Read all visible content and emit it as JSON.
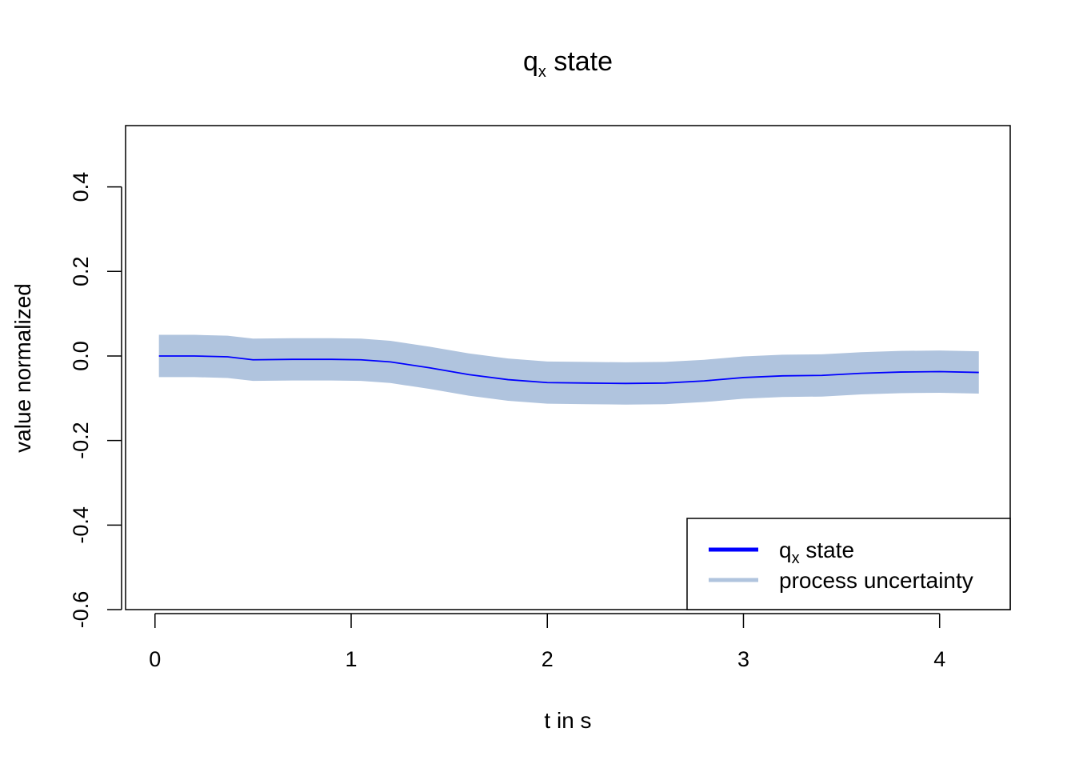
{
  "chart_data": {
    "type": "line",
    "title": {
      "main": "q",
      "subscript": "x",
      "rest": " state"
    },
    "xlabel": "t in s",
    "ylabel": "value normalized",
    "xlim": [
      -0.15,
      4.36
    ],
    "ylim": [
      -0.6,
      0.545
    ],
    "x_ticks": [
      0,
      1,
      2,
      3,
      4
    ],
    "x_tick_labels": [
      "0",
      "1",
      "2",
      "3",
      "4"
    ],
    "y_ticks": [
      -0.6,
      -0.4,
      -0.2,
      0.0,
      0.2,
      0.4
    ],
    "y_tick_labels": [
      "-0.6",
      "-0.4",
      "-0.2",
      "0.0",
      "0.2",
      "0.4"
    ],
    "grid": false,
    "legend_position": "bottom-right",
    "series": [
      {
        "name": "q_x state",
        "legend_main": "q",
        "legend_sub": "x",
        "legend_rest": " state",
        "color": "#0000ff",
        "x": [
          0.02,
          0.2,
          0.37,
          0.5,
          0.7,
          0.9,
          1.05,
          1.2,
          1.4,
          1.6,
          1.8,
          2.0,
          2.2,
          2.4,
          2.6,
          2.8,
          3.0,
          3.2,
          3.4,
          3.6,
          3.8,
          4.0,
          4.2
        ],
        "y": [
          0.0,
          0.0,
          -0.002,
          -0.009,
          -0.008,
          -0.008,
          -0.009,
          -0.014,
          -0.028,
          -0.044,
          -0.056,
          -0.063,
          -0.064,
          -0.065,
          -0.064,
          -0.059,
          -0.051,
          -0.047,
          -0.046,
          -0.041,
          -0.038,
          -0.037,
          -0.039
        ]
      },
      {
        "name": "process uncertainty",
        "color": "#b0c4de",
        "band_halfwidth": 0.05
      }
    ]
  }
}
